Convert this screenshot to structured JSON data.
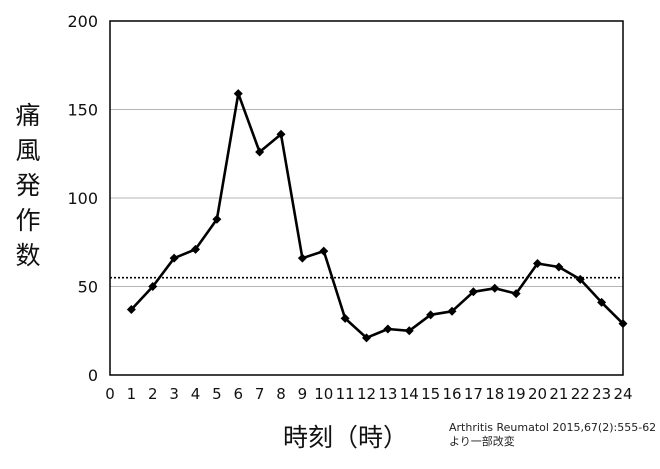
{
  "chart_data": {
    "type": "line",
    "ylabel": "痛風発作数",
    "xlabel": "時刻（時）",
    "x": [
      1,
      2,
      3,
      4,
      5,
      6,
      7,
      8,
      9,
      10,
      11,
      12,
      13,
      14,
      15,
      16,
      17,
      18,
      19,
      20,
      21,
      22,
      23,
      24
    ],
    "series": [
      {
        "values": [
          37,
          50,
          66,
          71,
          88,
          159,
          126,
          136,
          66,
          70,
          32,
          21,
          26,
          25,
          34,
          36,
          47,
          49,
          46,
          63,
          61,
          54,
          41,
          29
        ]
      }
    ],
    "reference_line": {
      "y": 55,
      "style": "dotted"
    },
    "xlim": [
      0,
      24
    ],
    "ylim": [
      0,
      200
    ],
    "xticks": [
      0,
      1,
      2,
      3,
      4,
      5,
      6,
      7,
      8,
      9,
      10,
      11,
      12,
      13,
      14,
      15,
      16,
      17,
      18,
      19,
      20,
      21,
      22,
      23,
      24
    ],
    "yticks": [
      0,
      50,
      100,
      150,
      200
    ],
    "grid": "horizontal",
    "marker": "diamond",
    "line_color": "#000000"
  },
  "citation": {
    "line1": "Arthritis Reumatol 2015,67(2):555-62",
    "line2": "より一部改変"
  }
}
